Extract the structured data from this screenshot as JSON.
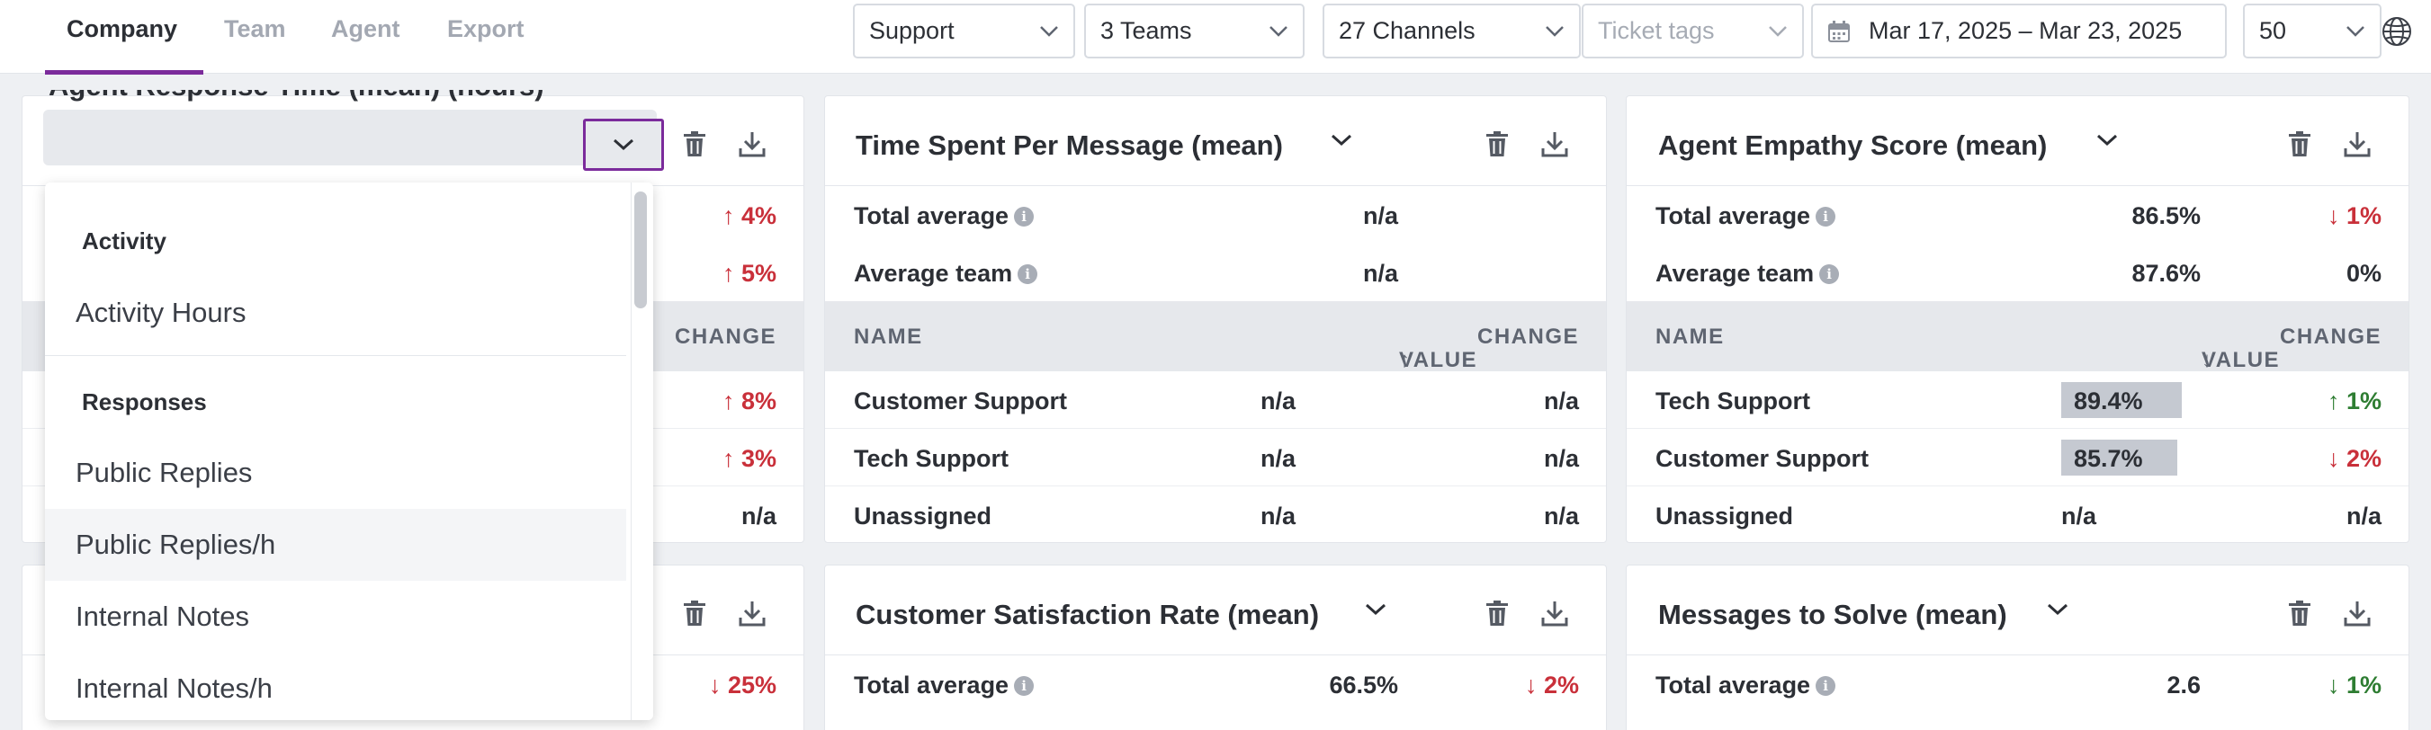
{
  "nav": {
    "tabs": [
      {
        "label": "Company"
      },
      {
        "label": "Team"
      },
      {
        "label": "Agent"
      },
      {
        "label": "Export"
      }
    ],
    "active_tab": "Company"
  },
  "filters": {
    "department": "Support",
    "teams": "3 Teams",
    "channels": "27 Channels",
    "ticket_tags_placeholder": "Ticket tags",
    "date_range": "Mar 17, 2025 – Mar 23, 2025",
    "limit": "50"
  },
  "cards": {
    "left_top": {
      "title": "Agent Response Time (mean) (hours)",
      "changes": [
        "↑ 4%",
        "↑ 5%"
      ],
      "header_change": "CHANGE",
      "row_changes": [
        "↑ 8%",
        "↑ 3%",
        "n/a"
      ]
    },
    "time_spent": {
      "title": "Time Spent Per Message (mean)",
      "total_label": "Total average",
      "total_value": "n/a",
      "team_label": "Average team",
      "team_value": "n/a",
      "col_name": "NAME",
      "col_value": "VALUE",
      "col_change": "CHANGE",
      "rows": [
        {
          "name": "Customer Support",
          "value": "n/a",
          "change": "n/a"
        },
        {
          "name": "Tech Support",
          "value": "n/a",
          "change": "n/a"
        },
        {
          "name": "Unassigned",
          "value": "n/a",
          "change": "n/a"
        }
      ]
    },
    "empathy": {
      "title": "Agent Empathy Score (mean)",
      "total_label": "Total average",
      "total_value": "86.5%",
      "total_change": "↓ 1%",
      "team_label": "Average team",
      "team_value": "87.6%",
      "team_change": "0%",
      "col_name": "NAME",
      "col_value": "VALUE",
      "col_change": "CHANGE",
      "rows": [
        {
          "name": "Tech Support",
          "value": "89.4%",
          "fill": 0.894,
          "change": "↑ 1%"
        },
        {
          "name": "Customer Support",
          "value": "85.7%",
          "fill": 0.857,
          "change": "↓ 2%"
        },
        {
          "name": "Unassigned",
          "value": "n/a",
          "change": "n/a"
        }
      ]
    },
    "left_bottom": {
      "change": "↓ 25%"
    },
    "csat": {
      "title": "Customer Satisfaction Rate (mean)",
      "total_label": "Total average",
      "total_value": "66.5%",
      "total_change": "↓ 2%"
    },
    "messages_to_solve": {
      "title": "Messages to Solve (mean)",
      "total_label": "Total average",
      "total_value": "2.6",
      "total_change": "↓ 1%"
    }
  },
  "dropdown": {
    "groups": [
      {
        "label": "Activity",
        "items": [
          "Activity Hours"
        ]
      },
      {
        "label": "Responses",
        "items": [
          "Public Replies",
          "Public Replies/h",
          "Internal Notes",
          "Internal Notes/h"
        ]
      }
    ],
    "hovered_item": "Public Replies/h"
  },
  "colors": {
    "accent": "#7b2b9b",
    "negative": "#c9303a",
    "positive": "#2e7d32"
  },
  "icons": [
    "chevron-down-icon",
    "calendar-icon",
    "globe-icon",
    "trash-icon",
    "download-icon",
    "info-icon"
  ]
}
